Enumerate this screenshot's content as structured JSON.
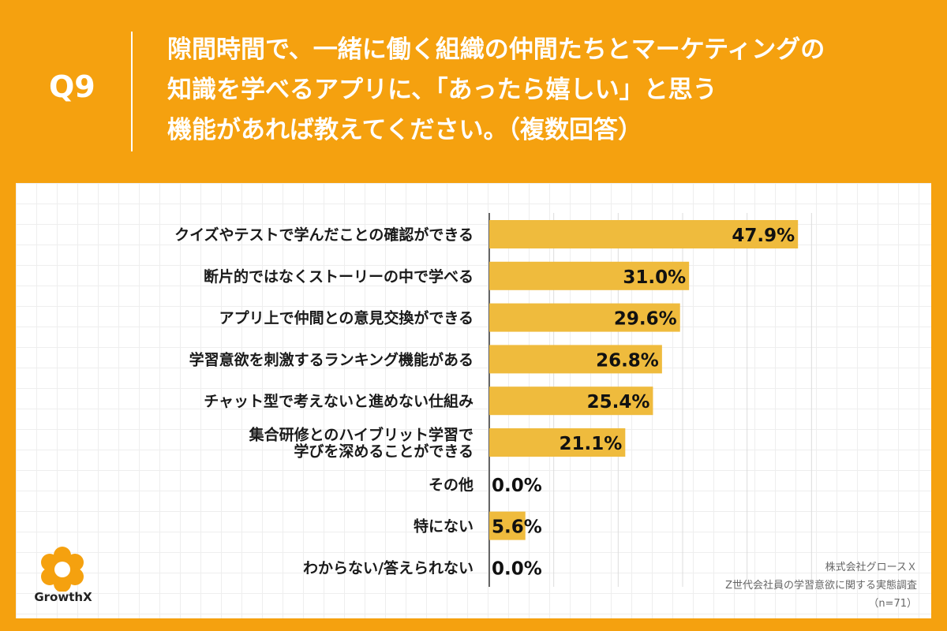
{
  "question": {
    "number": "Q9",
    "lines": [
      "隙間時間で、一緒に働く組織の仲間たちとマーケティングの",
      "知識を学べるアプリに、「あったら嬉しい」と思う",
      "機能があれば教えてください。（複数回答）"
    ]
  },
  "colors": {
    "background": "#f5a10f",
    "bar": "#efbb3d",
    "panel": "#ffffff",
    "gridline": "#dcdcdc",
    "logo": "#f5a10f"
  },
  "chart_data": {
    "type": "bar",
    "orientation": "horizontal",
    "unit": "%",
    "xlim": [
      0,
      60
    ],
    "grid": true,
    "categories": [
      [
        "クイズやテストで学んだことの確認ができる"
      ],
      [
        "断片的ではなくストーリーの中で学べる"
      ],
      [
        "アプリ上で仲間との意見交換ができる"
      ],
      [
        "学習意欲を刺激するランキング機能がある"
      ],
      [
        "チャット型で考えないと進めない仕組み"
      ],
      [
        "集合研修とのハイブリット学習で",
        "学びを深めることができる"
      ],
      [
        "その他"
      ],
      [
        "特にない"
      ],
      [
        "わからない/答えられない"
      ]
    ],
    "values": [
      47.9,
      31.0,
      29.6,
      26.8,
      25.4,
      21.1,
      0.0,
      5.6,
      0.0
    ],
    "data_labels": [
      "47.9%",
      "31.0%",
      "29.6%",
      "26.8%",
      "25.4%",
      "21.1%",
      "0.0%",
      "5.6%",
      "0.0%"
    ]
  },
  "logo": {
    "text": "GrowthX",
    "icon": "growthx-logo-icon"
  },
  "source": {
    "company": "株式会社グロースＸ",
    "survey": "Z世代会社員の学習意欲に関する実態調査",
    "sample": "（n=71）"
  }
}
